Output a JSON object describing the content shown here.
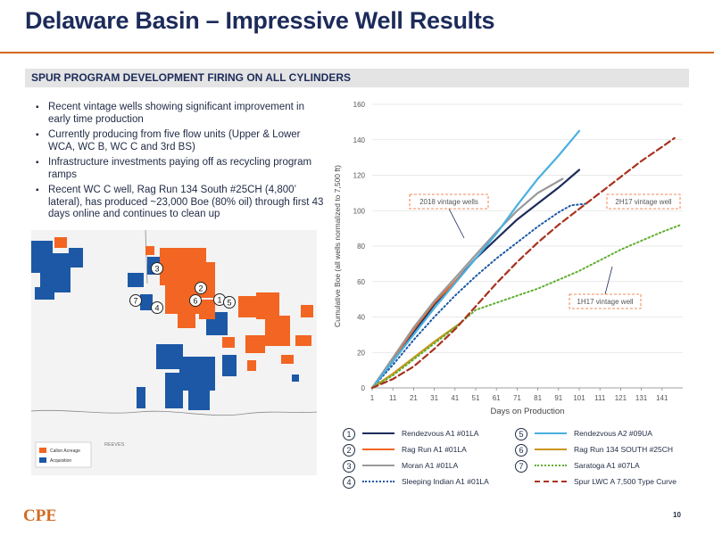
{
  "header": {
    "title": "Delaware Basin – Impressive Well Results",
    "section_label": "SPUR PROGRAM DEVELOPMENT FIRING ON ALL CYLINDERS"
  },
  "bullets": [
    "Recent vintage wells showing significant improvement in early time production",
    "Currently producing from five flow units (Upper & Lower WCA, WC B, WC C and 3rd BS)",
    "Infrastructure investments paying off as recycling program ramps",
    "Recent WC C well, Rag Run 134 South #25CH (4,800’ lateral), has produced ~23,000 Boe (80% oil) through first 43 days online and continues to clean up"
  ],
  "map": {
    "legend": [
      "Callon Acreage",
      "Acquisition"
    ],
    "county_label": "REEVES",
    "markers": [
      "1",
      "2",
      "3",
      "4",
      "5",
      "6",
      "7"
    ],
    "colors": {
      "callon": "#f26522",
      "acquisition": "#1c58a6"
    }
  },
  "chart_data": {
    "type": "line",
    "xlabel": "Days on Production",
    "ylabel": "Cumulative Boe (all wells normalized to 7,500 ft)",
    "xlim": [
      1,
      151
    ],
    "ylim": [
      0,
      160
    ],
    "x_ticks": [
      "1",
      "11",
      "21",
      "31",
      "41",
      "51",
      "61",
      "71",
      "81",
      "91",
      "101",
      "111",
      "121",
      "131",
      "141"
    ],
    "y_ticks": [
      "0",
      "20",
      "40",
      "60",
      "80",
      "100",
      "120",
      "140",
      "160"
    ],
    "annotations": [
      {
        "text": "2018 vintage wells",
        "at": [
          55,
          73
        ]
      },
      {
        "text": "2H17 vintage well",
        "at": [
          108,
          101
        ]
      },
      {
        "text": "1H17 vintage well",
        "at": [
          91,
          77
        ]
      }
    ],
    "series": [
      {
        "name": "Rendezvous A1 #01LA",
        "num": "1",
        "color": "#1c2b5a",
        "style": "solid",
        "points": [
          [
            1,
            0
          ],
          [
            11,
            15
          ],
          [
            21,
            31
          ],
          [
            31,
            47
          ],
          [
            41,
            60
          ],
          [
            51,
            73
          ],
          [
            61,
            84
          ],
          [
            71,
            95
          ],
          [
            81,
            104
          ],
          [
            91,
            113
          ],
          [
            101,
            123
          ]
        ]
      },
      {
        "name": "Rag Run A1 #01LA",
        "num": "2",
        "color": "#f26522",
        "style": "solid",
        "points": [
          [
            1,
            0
          ],
          [
            11,
            16
          ],
          [
            21,
            33
          ],
          [
            31,
            48
          ],
          [
            41,
            60
          ],
          [
            46,
            66
          ]
        ]
      },
      {
        "name": "Moran A1 #01LA",
        "num": "3",
        "color": "#999999",
        "style": "solid",
        "points": [
          [
            1,
            0
          ],
          [
            11,
            17
          ],
          [
            21,
            34
          ],
          [
            31,
            49
          ],
          [
            41,
            62
          ],
          [
            51,
            75
          ],
          [
            61,
            88
          ],
          [
            71,
            100
          ],
          [
            81,
            110
          ],
          [
            93,
            118
          ]
        ]
      },
      {
        "name": "Sleeping Indian A1 #01LA",
        "num": "4",
        "color": "#1c58a6",
        "style": "dotted",
        "points": [
          [
            1,
            0
          ],
          [
            11,
            13
          ],
          [
            21,
            27
          ],
          [
            31,
            40
          ],
          [
            41,
            52
          ],
          [
            51,
            63
          ],
          [
            61,
            73
          ],
          [
            71,
            82
          ],
          [
            81,
            91
          ],
          [
            91,
            99
          ],
          [
            97,
            103
          ],
          [
            105,
            104
          ]
        ]
      },
      {
        "name": "Rendezvous A2 #09UA",
        "num": "5",
        "color": "#4ab0e0",
        "style": "solid",
        "points": [
          [
            1,
            0
          ],
          [
            11,
            15
          ],
          [
            21,
            30
          ],
          [
            31,
            45
          ],
          [
            41,
            59
          ],
          [
            51,
            73
          ],
          [
            61,
            87
          ],
          [
            71,
            103
          ],
          [
            81,
            118
          ],
          [
            91,
            131
          ],
          [
            101,
            145
          ]
        ]
      },
      {
        "name": "Rag Run 134 SOUTH #25CH",
        "num": "6",
        "color": "#c9951a",
        "style": "solid",
        "points": [
          [
            1,
            0
          ],
          [
            11,
            8
          ],
          [
            21,
            17
          ],
          [
            31,
            26
          ],
          [
            43,
            36
          ]
        ]
      },
      {
        "name": "Saratoga A1 #07LA",
        "num": "7",
        "color": "#5fae2e",
        "style": "dotted",
        "points": [
          [
            1,
            0
          ],
          [
            11,
            7
          ],
          [
            21,
            16
          ],
          [
            31,
            25
          ],
          [
            41,
            34
          ],
          [
            51,
            44
          ],
          [
            61,
            48
          ],
          [
            71,
            52
          ],
          [
            81,
            56
          ],
          [
            91,
            61
          ],
          [
            101,
            66
          ],
          [
            111,
            72
          ],
          [
            121,
            78
          ],
          [
            131,
            83
          ],
          [
            141,
            88
          ],
          [
            150,
            92
          ]
        ]
      },
      {
        "name": "Spur LWC A 7,500 Type Curve",
        "num": "",
        "color": "#a8321e",
        "style": "dashed",
        "points": [
          [
            1,
            0
          ],
          [
            11,
            5
          ],
          [
            21,
            12
          ],
          [
            31,
            22
          ],
          [
            41,
            33
          ],
          [
            51,
            46
          ],
          [
            61,
            59
          ],
          [
            71,
            71
          ],
          [
            81,
            82
          ],
          [
            91,
            92
          ],
          [
            101,
            101
          ],
          [
            111,
            110
          ],
          [
            121,
            119
          ],
          [
            131,
            128
          ],
          [
            141,
            136
          ],
          [
            147,
            141
          ]
        ]
      }
    ]
  },
  "footer": {
    "page_number": "10",
    "logo_text": "CPE"
  }
}
